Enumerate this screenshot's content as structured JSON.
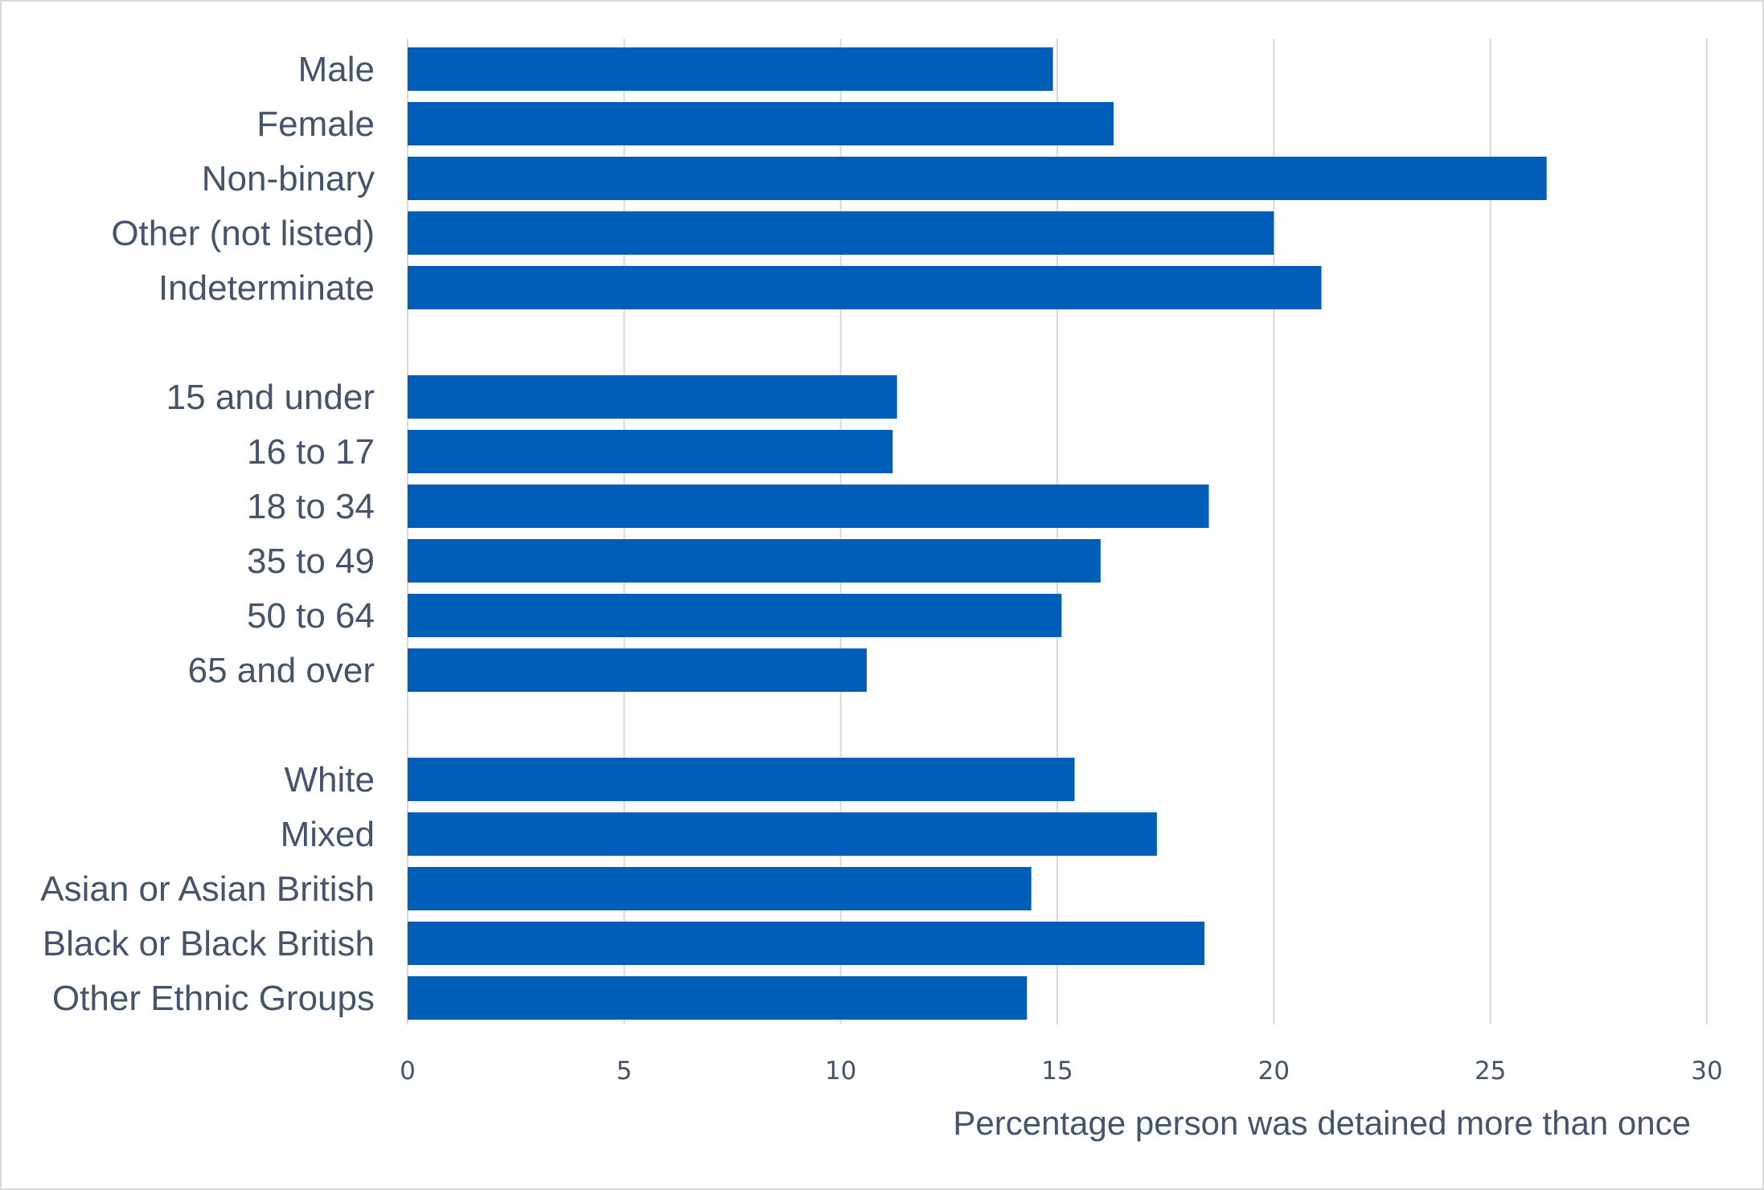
{
  "chart_data": {
    "type": "bar",
    "orientation": "horizontal",
    "categories": [
      "Male",
      "Female",
      "Non-binary",
      "Other (not listed)",
      "Indeterminate",
      "",
      "15 and under",
      "16 to 17",
      "18 to 34",
      "35 to 49",
      "50 to 64",
      "65 and over",
      "",
      "White",
      "Mixed",
      "Asian or Asian British",
      "Black or Black British",
      "Other Ethnic Groups"
    ],
    "values": [
      14.9,
      16.3,
      26.3,
      20.0,
      21.1,
      null,
      11.3,
      11.2,
      18.5,
      16.0,
      15.1,
      10.6,
      null,
      15.4,
      17.3,
      14.4,
      18.4,
      14.3
    ],
    "title": "",
    "xlabel": "Percentage person was detained more than once",
    "ylabel": "",
    "xlim": [
      0,
      30
    ],
    "xticks": [
      "0",
      "5",
      "10",
      "15",
      "20",
      "25",
      "30"
    ],
    "grid": "vertical",
    "legend": "none",
    "colors": {
      "bar": "#005eb8",
      "grid": "#d9d9d9",
      "text": "#44546a",
      "border": "#d9d9d9"
    }
  }
}
